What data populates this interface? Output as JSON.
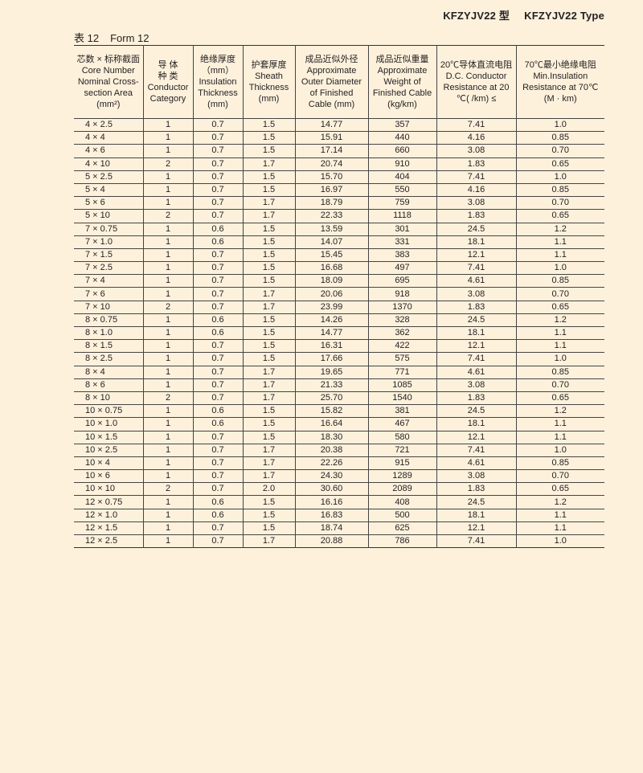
{
  "header": {
    "title_cn": "KFZYJV22 型",
    "title_en": "KFZYJV22 Type"
  },
  "form": {
    "label_cn": "表 12",
    "label_en": "Form 12"
  },
  "table": {
    "columns": [
      [
        "芯数 × 标称截面",
        "Core Number",
        "Nominal Cross-",
        "section Area",
        "(mm²)"
      ],
      [
        "导 体",
        "种 类",
        "Conductor",
        "Category"
      ],
      [
        "绝缘厚度",
        "（mm）",
        "Insulation",
        "Thickness",
        "(mm)"
      ],
      [
        "护套厚度",
        "Sheath",
        "Thickness",
        "(mm)"
      ],
      [
        "成品近似外径",
        "Approximate",
        "Outer Diameter",
        "of Finished",
        "Cable (mm)"
      ],
      [
        "成品近似重量",
        "Approximate",
        "Weight of",
        "Finished Cable",
        "(kg/km)"
      ],
      [
        "20℃导体直流电阻",
        "D.C. Conductor",
        "Resistance at 20",
        "℃(  /km) ≤"
      ],
      [
        "70℃最小绝缘电阻",
        "Min.Insulation",
        "Resistance at 70℃",
        "(M   · km)"
      ]
    ],
    "rows": [
      [
        "4 × 2.5",
        "1",
        "0.7",
        "1.5",
        "14.77",
        "357",
        "7.41",
        "1.0"
      ],
      [
        "4 × 4",
        "1",
        "0.7",
        "1.5",
        "15.91",
        "440",
        "4.16",
        "0.85"
      ],
      [
        "4 × 6",
        "1",
        "0.7",
        "1.5",
        "17.14",
        "660",
        "3.08",
        "0.70"
      ],
      [
        "4 × 10",
        "2",
        "0.7",
        "1.7",
        "20.74",
        "910",
        "1.83",
        "0.65"
      ],
      [
        "5 × 2.5",
        "1",
        "0.7",
        "1.5",
        "15.70",
        "404",
        "7.41",
        "1.0"
      ],
      [
        "5 × 4",
        "1",
        "0.7",
        "1.5",
        "16.97",
        "550",
        "4.16",
        "0.85"
      ],
      [
        "5 × 6",
        "1",
        "0.7",
        "1.7",
        "18.79",
        "759",
        "3.08",
        "0.70"
      ],
      [
        "5 × 10",
        "2",
        "0.7",
        "1.7",
        "22.33",
        "1118",
        "1.83",
        "0.65"
      ],
      [
        "7 × 0.75",
        "1",
        "0.6",
        "1.5",
        "13.59",
        "301",
        "24.5",
        "1.2"
      ],
      [
        "7 × 1.0",
        "1",
        "0.6",
        "1.5",
        "14.07",
        "331",
        "18.1",
        "1.1"
      ],
      [
        "7 × 1.5",
        "1",
        "0.7",
        "1.5",
        "15.45",
        "383",
        "12.1",
        "1.1"
      ],
      [
        "7 × 2.5",
        "1",
        "0.7",
        "1.5",
        "16.68",
        "497",
        "7.41",
        "1.0"
      ],
      [
        "7 × 4",
        "1",
        "0.7",
        "1.5",
        "18.09",
        "695",
        "4.61",
        "0.85"
      ],
      [
        "7 × 6",
        "1",
        "0.7",
        "1.7",
        "20.06",
        "918",
        "3.08",
        "0.70"
      ],
      [
        "7 × 10",
        "2",
        "0.7",
        "1.7",
        "23.99",
        "1370",
        "1.83",
        "0.65"
      ],
      [
        "8 × 0.75",
        "1",
        "0.6",
        "1.5",
        "14.26",
        "328",
        "24.5",
        "1.2"
      ],
      [
        "8 × 1.0",
        "1",
        "0.6",
        "1.5",
        "14.77",
        "362",
        "18.1",
        "1.1"
      ],
      [
        "8 × 1.5",
        "1",
        "0.7",
        "1.5",
        "16.31",
        "422",
        "12.1",
        "1.1"
      ],
      [
        "8 × 2.5",
        "1",
        "0.7",
        "1.5",
        "17.66",
        "575",
        "7.41",
        "1.0"
      ],
      [
        "8 × 4",
        "1",
        "0.7",
        "1.7",
        "19.65",
        "771",
        "4.61",
        "0.85"
      ],
      [
        "8 × 6",
        "1",
        "0.7",
        "1.7",
        "21.33",
        "1085",
        "3.08",
        "0.70"
      ],
      [
        "8 × 10",
        "2",
        "0.7",
        "1.7",
        "25.70",
        "1540",
        "1.83",
        "0.65"
      ],
      [
        "10 × 0.75",
        "1",
        "0.6",
        "1.5",
        "15.82",
        "381",
        "24.5",
        "1.2"
      ],
      [
        "10 × 1.0",
        "1",
        "0.6",
        "1.5",
        "16.64",
        "467",
        "18.1",
        "1.1"
      ],
      [
        "10 × 1.5",
        "1",
        "0.7",
        "1.5",
        "18.30",
        "580",
        "12.1",
        "1.1"
      ],
      [
        "10 × 2.5",
        "1",
        "0.7",
        "1.7",
        "20.38",
        "721",
        "7.41",
        "1.0"
      ],
      [
        "10 × 4",
        "1",
        "0.7",
        "1.7",
        "22.26",
        "915",
        "4.61",
        "0.85"
      ],
      [
        "10 × 6",
        "1",
        "0.7",
        "1.7",
        "24.30",
        "1289",
        "3.08",
        "0.70"
      ],
      [
        "10 × 10",
        "2",
        "0.7",
        "2.0",
        "30.60",
        "2089",
        "1.83",
        "0.65"
      ],
      [
        "12 × 0.75",
        "1",
        "0.6",
        "1.5",
        "16.16",
        "408",
        "24.5",
        "1.2"
      ],
      [
        "12 × 1.0",
        "1",
        "0.6",
        "1.5",
        "16.83",
        "500",
        "18.1",
        "1.1"
      ],
      [
        "12 × 1.5",
        "1",
        "0.7",
        "1.5",
        "18.74",
        "625",
        "12.1",
        "1.1"
      ],
      [
        "12 × 2.5",
        "1",
        "0.7",
        "1.7",
        "20.88",
        "786",
        "7.41",
        "1.0"
      ]
    ]
  }
}
